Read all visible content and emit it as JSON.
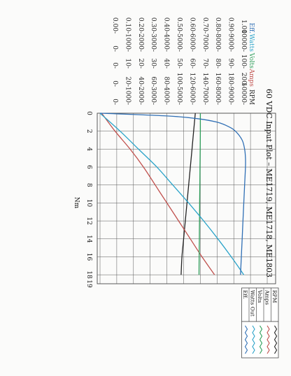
{
  "chart_data": {
    "type": "line",
    "title": "60 VDC Input Plot – ME1719, ME1718, ME1803",
    "xlabel": "Nm",
    "x_ticks": [
      "0",
      "2",
      "4",
      "6",
      "8",
      "10",
      "12",
      "14",
      "16",
      "18",
      "19"
    ],
    "xlim": [
      0,
      19
    ],
    "axes": [
      {
        "name": "RPM",
        "color": "#222222",
        "ticks": [
          "10000-",
          "9000-",
          "8000-",
          "7000-",
          "6000-",
          "5000-",
          "4000-",
          "3000-",
          "2000-",
          "1000-",
          "0-"
        ]
      },
      {
        "name": "Amps",
        "color": "#c0504d",
        "ticks": [
          "200-",
          "180-",
          "160-",
          "140-",
          "120-",
          "100-",
          "80-",
          "60-",
          "40-",
          "20-",
          "0-"
        ]
      },
      {
        "name": "Volts",
        "color": "#2e9e5a",
        "ticks": [
          "100-",
          "90-",
          "80-",
          "70-",
          "60-",
          "50-",
          "40-",
          "30-",
          "20-",
          "10-",
          "0-"
        ]
      },
      {
        "name": "Watts",
        "color": "#2aa3c9",
        "ticks": [
          "10000-",
          "9000-",
          "8000-",
          "7000-",
          "6000-",
          "5000-",
          "4000-",
          "3000-",
          "2000-",
          "1000-",
          "0-"
        ]
      },
      {
        "name": "Eff.",
        "color": "#2f6fb5",
        "ticks": [
          "1.00",
          "0.90-",
          "0.80-",
          "0.70-",
          "0.60-",
          "0.50-",
          "0.40-",
          "0.30-",
          "0.20-",
          "0.10-",
          "0.00-"
        ]
      }
    ],
    "legend": {
      "placement": "right",
      "items": [
        {
          "label": "RPM",
          "color": "#222222"
        },
        {
          "label": "Amps",
          "color": "#c0504d"
        },
        {
          "label": "Volts",
          "color": "#2e9e5a"
        },
        {
          "label": "Watts Out",
          "color": "#2aa3c9"
        },
        {
          "label": "Eff.",
          "color": "#2f6fb5"
        }
      ]
    },
    "series": [
      {
        "name": "RPM",
        "color": "#222222",
        "axis": "RPM",
        "x": [
          0,
          2,
          4,
          6,
          8,
          10,
          12,
          14,
          16,
          18
        ],
        "values": [
          5700,
          5600,
          5500,
          5400,
          5300,
          5200,
          5100,
          5000,
          4900,
          4850
        ]
      },
      {
        "name": "Amps",
        "color": "#c0504d",
        "axis": "Amps",
        "x": [
          0,
          2,
          4,
          6,
          8,
          10,
          12,
          14,
          16,
          18
        ],
        "values": [
          2,
          18,
          36,
          52,
          66,
          80,
          94,
          108,
          122,
          137
        ]
      },
      {
        "name": "Volts",
        "color": "#2e9e5a",
        "axis": "Volts",
        "x": [
          0,
          2,
          4,
          6,
          8,
          10,
          12,
          14,
          16,
          18
        ],
        "values": [
          60,
          60,
          59.9,
          59.8,
          59.7,
          59.6,
          59.5,
          59.4,
          59.3,
          59.2
        ]
      },
      {
        "name": "Watts Out",
        "color": "#2aa3c9",
        "axis": "Watts",
        "x": [
          0,
          2,
          4,
          6,
          8,
          10,
          12,
          14,
          16,
          18
        ],
        "values": [
          0,
          1200,
          2300,
          3400,
          4350,
          5300,
          6200,
          7050,
          7850,
          8600
        ]
      },
      {
        "name": "Eff.",
        "color": "#2f6fb5",
        "axis": "Eff.",
        "x": [
          0,
          0.3,
          0.6,
          1,
          1.5,
          2,
          3,
          4,
          5,
          6,
          8,
          10,
          14,
          18
        ],
        "values": [
          0,
          0.4,
          0.58,
          0.7,
          0.77,
          0.81,
          0.85,
          0.865,
          0.87,
          0.87,
          0.865,
          0.86,
          0.85,
          0.84
        ]
      }
    ]
  }
}
